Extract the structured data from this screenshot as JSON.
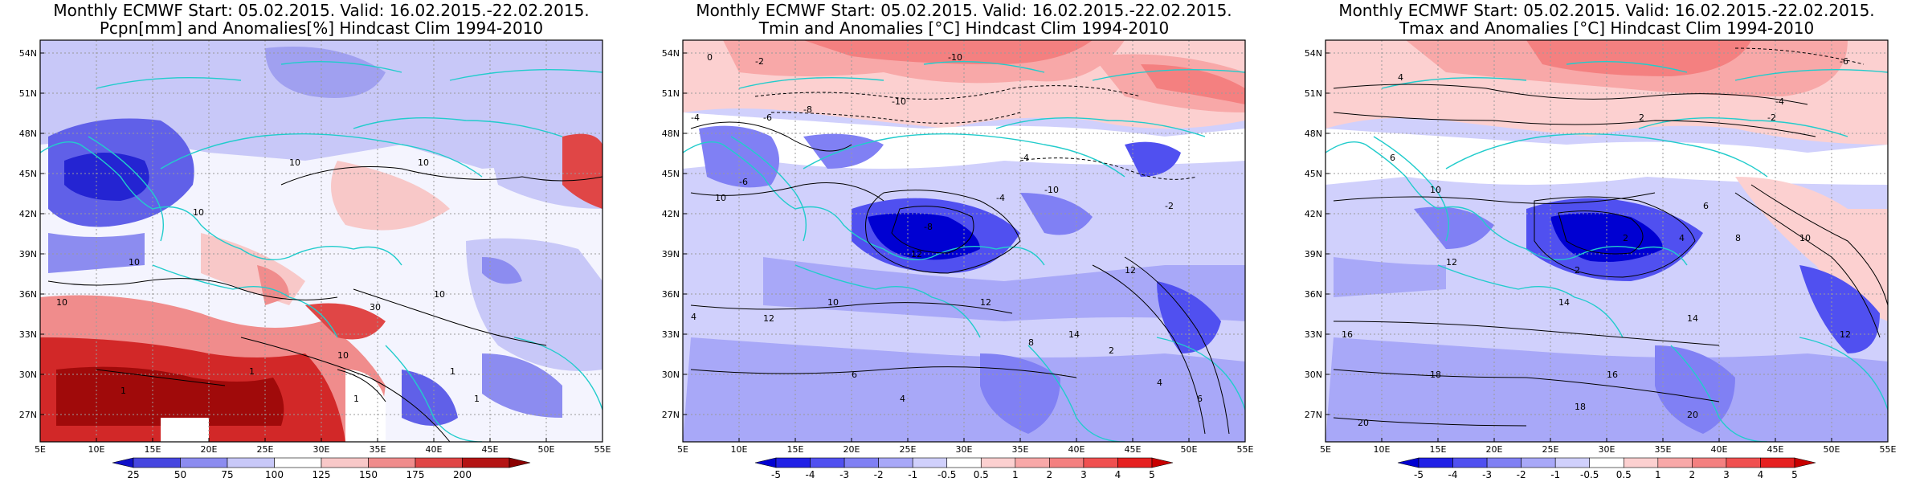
{
  "panels": [
    {
      "title1": "Monthly ECMWF Start: 05.02.2015. Valid: 16.02.2015.-22.02.2015.",
      "title2": "Pcpn[mm] and Anomalies[%] Hindcast Clim 1994-2010",
      "colorbar": {
        "labels": [
          "25",
          "50",
          "75",
          "100",
          "125",
          "150",
          "175",
          "200"
        ],
        "colors": [
          "#1010c8",
          "#4646e0",
          "#8c8cf0",
          "#c8c8f8",
          "#ffffff",
          "#f8c8c8",
          "#f08c8c",
          "#e04646",
          "#b41414",
          "#8b0000"
        ]
      },
      "contour_labels": [
        "10",
        "10",
        "10",
        "10",
        "10",
        "30",
        "10",
        "1",
        "1",
        "1",
        "1",
        "1",
        "10"
      ]
    },
    {
      "title1": "Monthly ECMWF Start: 05.02.2015. Valid: 16.02.2015.-22.02.2015.",
      "title2": "Tmin and Anomalies [°C] Hindcast Clim 1994-2010",
      "colorbar": {
        "labels": [
          "-5",
          "-4",
          "-3",
          "-2",
          "-1",
          "-0.5",
          "0.5",
          "1",
          "2",
          "3",
          "4",
          "5"
        ],
        "colors": [
          "#0000d2",
          "#2020e6",
          "#5050f0",
          "#8080f4",
          "#a8a8f8",
          "#d0d0fc",
          "#ffffff",
          "#fcd0d0",
          "#f8a8a8",
          "#f48080",
          "#f05050",
          "#e62020",
          "#c80000"
        ]
      },
      "contour_labels": [
        "0",
        "-2",
        "-10",
        "-4",
        "-6",
        "-8",
        "-10",
        "-4",
        "-6",
        "-10",
        "-12",
        "-8",
        "-4",
        "4",
        "10",
        "12",
        "6",
        "4",
        "10",
        "12",
        "8",
        "14",
        "2",
        "4",
        "6",
        "12",
        "-2"
      ]
    },
    {
      "title1": "Monthly ECMWF Start: 05.02.2015. Valid: 16.02.2015.-22.02.2015.",
      "title2": "Tmax and Anomalies [°C] Hindcast Clim 1994-2010",
      "colorbar": {
        "labels": [
          "-5",
          "-4",
          "-3",
          "-2",
          "-1",
          "-0.5",
          "0.5",
          "1",
          "2",
          "3",
          "4",
          "5"
        ],
        "colors": [
          "#0000d2",
          "#2020e6",
          "#5050f0",
          "#8080f4",
          "#a8a8f8",
          "#d0d0fc",
          "#ffffff",
          "#fcd0d0",
          "#f8a8a8",
          "#f48080",
          "#f05050",
          "#e62020",
          "#c80000"
        ]
      },
      "contour_labels": [
        "-6",
        "-4",
        "-2",
        "4",
        "2",
        "6",
        "10",
        "2",
        "12",
        "14",
        "16",
        "18",
        "20",
        "10",
        "14",
        "16",
        "18",
        "20",
        "2",
        "4",
        "6",
        "8",
        "12"
      ]
    }
  ],
  "lat_labels": [
    "54N",
    "51N",
    "48N",
    "45N",
    "42N",
    "39N",
    "36N",
    "33N",
    "30N",
    "27N"
  ],
  "lon_labels": [
    "5E",
    "10E",
    "15E",
    "20E",
    "25E",
    "30E",
    "35E",
    "40E",
    "45E",
    "50E",
    "55E"
  ]
}
